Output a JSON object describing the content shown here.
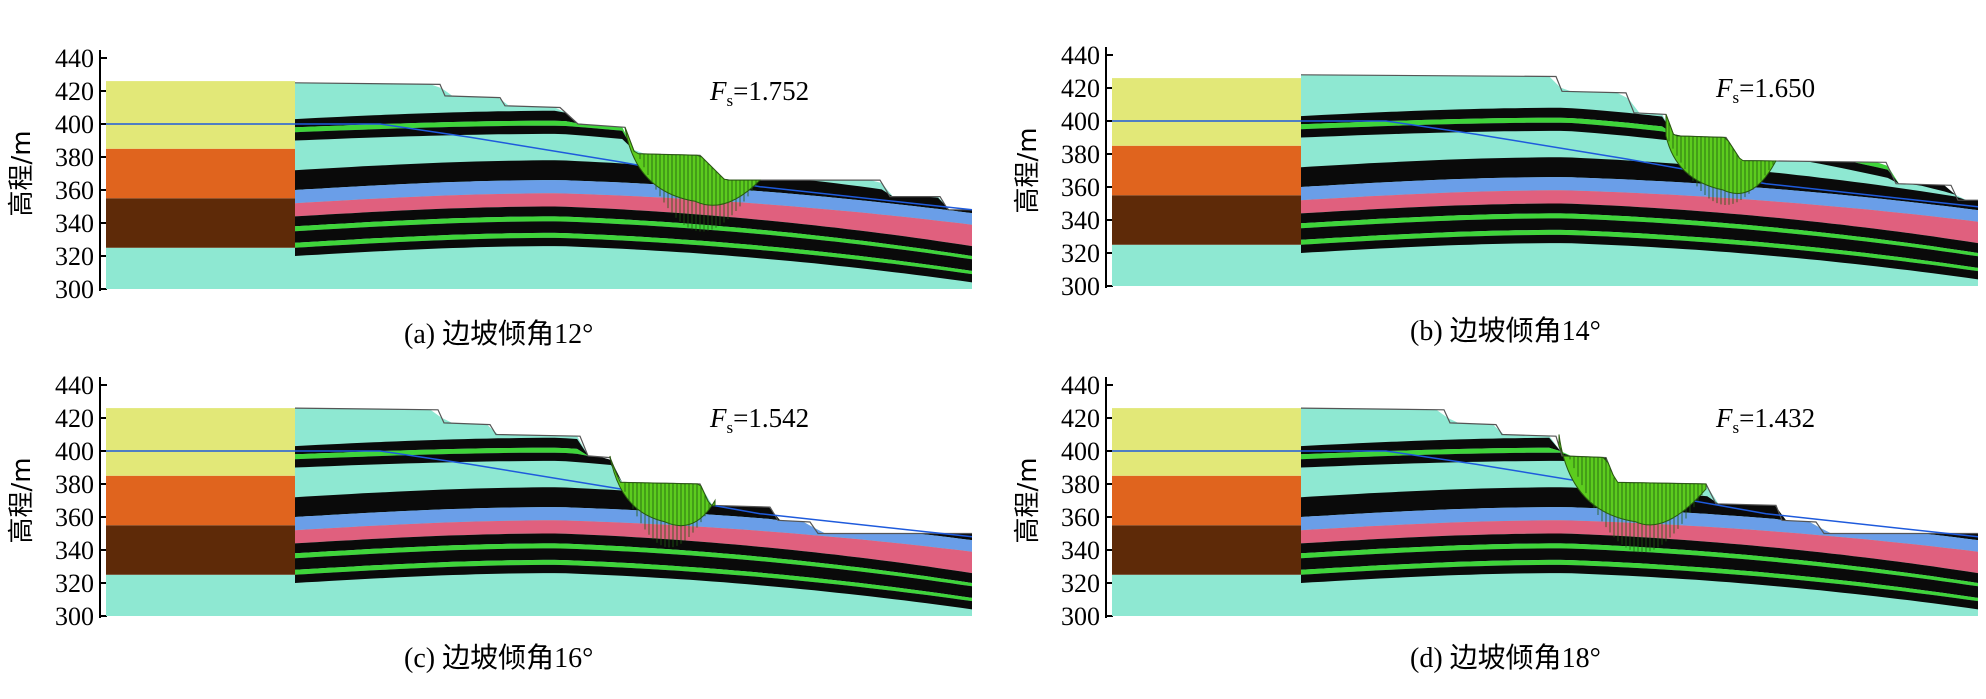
{
  "colors": {
    "cyan": "#8ee8d2",
    "yellow": "#e2e878",
    "orange": "#e0641e",
    "brown": "#5e2a08",
    "black": "#0a0a0a",
    "green": "#3fd43a",
    "blue": "#6a9ee8",
    "pink": "#e0607e",
    "water_line": "#1e5adc",
    "slip_fill": "#5ccc1e"
  },
  "y_axis": {
    "label": "高程/m",
    "ticks": [
      "440",
      "420",
      "400",
      "380",
      "360",
      "340",
      "320",
      "300"
    ]
  },
  "panels": [
    {
      "id": "a",
      "caption": "(a) 边坡倾角12°",
      "fs_symbol": "F",
      "fs_sub": "s",
      "fs_eq": "=1.752",
      "slope_angle_deg": 12
    },
    {
      "id": "b",
      "caption": "(b) 边坡倾角14°",
      "fs_symbol": "F",
      "fs_sub": "s",
      "fs_eq": "=1.650",
      "slope_angle_deg": 14
    },
    {
      "id": "c",
      "caption": "(c) 边坡倾角16°",
      "fs_symbol": "F",
      "fs_sub": "s",
      "fs_eq": "=1.542",
      "slope_angle_deg": 16
    },
    {
      "id": "d",
      "caption": "(d) 边坡倾角18°",
      "fs_symbol": "F",
      "fs_sub": "s",
      "fs_eq": "=1.432",
      "slope_angle_deg": 18
    }
  ]
}
